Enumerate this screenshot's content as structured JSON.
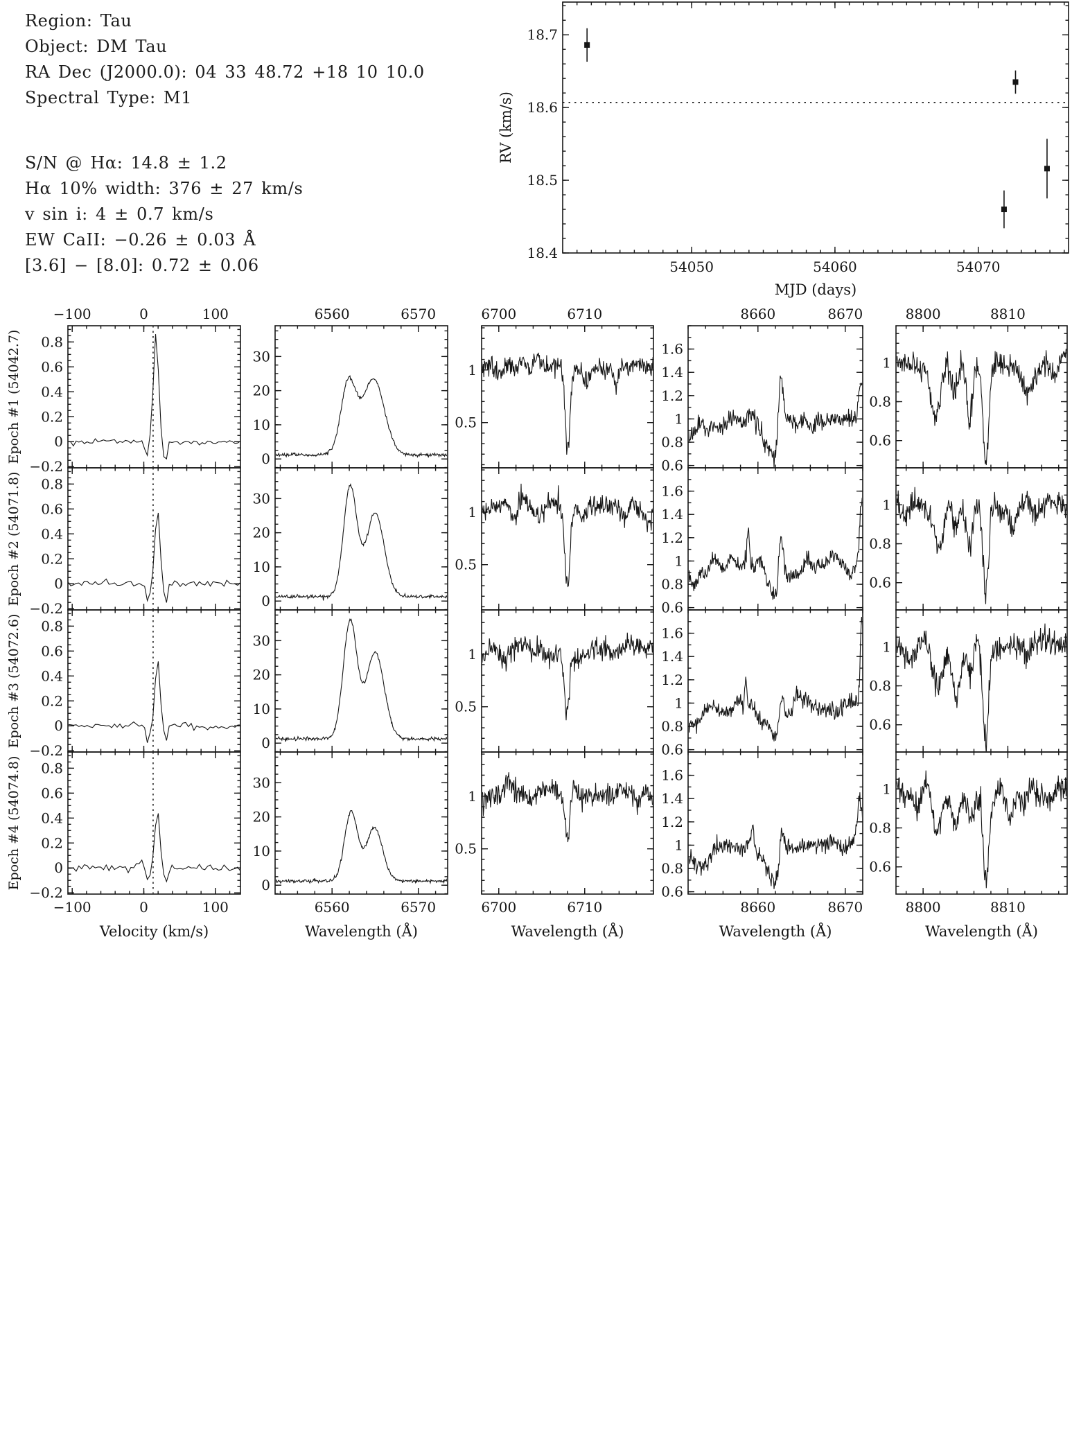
{
  "info": {
    "lines": [
      "Region: Tau",
      "Object: DM Tau",
      "RA Dec (J2000.0): 04 33 48.72 +18 10 10.0",
      "Spectral Type: M1",
      "S/N @ Hα: 14.8 ± 1.2",
      "Hα 10% width: 376 ± 27 km/s",
      "v sin i: 4 ± 0.7 km/s",
      "EW CaII: −0.26 ± 0.03 Å",
      "[3.6] − [8.0]: 0.72 ± 0.06"
    ]
  },
  "colors": {
    "ink": "#161616",
    "line": "#1a1a1a"
  },
  "chart_data": [
    {
      "id": "rv_plot",
      "type": "scatter",
      "title": "",
      "xlabel": "MJD (days)",
      "ylabel": "RV (km/s)",
      "xlim": [
        54041.0,
        54076.3
      ],
      "ylim": [
        18.4,
        18.745
      ],
      "xticks": [
        54050,
        54060,
        54070
      ],
      "yticks": [
        18.4,
        18.5,
        18.6,
        18.7
      ],
      "x_minor_step": 1,
      "y_minor_step": 0.02,
      "grid": false,
      "mean_line": 18.607,
      "points": [
        {
          "mjd": 54042.7,
          "rv": 18.686,
          "err": 0.023
        },
        {
          "mjd": 54071.8,
          "rv": 18.46,
          "err": 0.026
        },
        {
          "mjd": 54072.6,
          "rv": 18.635,
          "err": 0.016
        },
        {
          "mjd": 54074.8,
          "rv": 18.516,
          "err": 0.041
        }
      ]
    },
    {
      "id": "epoch_grid",
      "type": "line",
      "rows": [
        {
          "label": "Epoch #1 (54042.7)"
        },
        {
          "label": "Epoch #2 (54071.8)"
        },
        {
          "label": "Epoch #3 (54072.6)"
        },
        {
          "label": "Epoch #4 (54074.8)"
        }
      ],
      "columns": [
        {
          "xlabel": "Velocity (km/s)",
          "xlim": [
            -106,
            135
          ],
          "xticks": [
            -100,
            0,
            100
          ],
          "x_minor_step": 20,
          "ylim": [
            -0.21,
            0.93
          ],
          "yticks": [
            -0.2,
            0,
            0.2,
            0.4,
            0.6,
            0.8
          ],
          "y_minor_step": 0.05,
          "vline": 13
        },
        {
          "xlabel": "Wavelength (Å)",
          "xlim": [
            6553.4,
            6573.4
          ],
          "xticks": [
            6560,
            6570
          ],
          "x_minor_step": 2,
          "ylim": [
            -2.6,
            39
          ],
          "yticks": [
            0,
            10,
            20,
            30
          ],
          "y_minor_step": 2.5
        },
        {
          "xlabel": "Wavelength (Å)",
          "xlim": [
            6698,
            6718
          ],
          "xticks": [
            6700,
            6710
          ],
          "x_minor_step": 2,
          "ylim": [
            0.07,
            1.42
          ],
          "yticks": [
            0.5,
            1
          ],
          "y_minor_step": 0.1
        },
        {
          "xlabel": "Wavelength (Å)",
          "xlim": [
            8652,
            8672
          ],
          "xticks": [
            8660,
            8670
          ],
          "x_minor_step": 2,
          "ylim": [
            0.58,
            1.8
          ],
          "yticks": [
            0.6,
            0.8,
            1,
            1.2,
            1.4,
            1.6
          ],
          "y_minor_step": 0.1
        },
        {
          "xlabel": "Wavelength (Å)",
          "xlim": [
            8796.8,
            8817
          ],
          "xticks": [
            8800,
            8810
          ],
          "x_minor_step": 2,
          "ylim": [
            0.46,
            1.19
          ],
          "yticks": [
            0.6,
            0.8,
            1
          ],
          "y_minor_step": 0.05
        }
      ],
      "panels": [
        {
          "row": 0,
          "col": 0,
          "kind": "ccf",
          "seed": 11,
          "noise": 0.012,
          "features": [
            {
              "c": 17,
              "h": 0.9,
              "w": 3.4
            },
            {
              "c": 4,
              "h": -0.13,
              "w": 2.4
            },
            {
              "c": 30,
              "h": -0.16,
              "w": 2.4
            }
          ]
        },
        {
          "row": 0,
          "col": 1,
          "kind": "halpha",
          "seed": 12,
          "base": 1.2,
          "noise": 0.25,
          "features": [
            {
              "c": 6561.9,
              "h": 21.0,
              "w": 0.88
            },
            {
              "c": 6564.8,
              "h": 22.3,
              "w": 1.25
            }
          ]
        },
        {
          "row": 0,
          "col": 2,
          "kind": "spectrum",
          "seed": 13,
          "cont": 1.03,
          "noise": 0.062,
          "features": [
            {
              "c": 6708.0,
              "h": -0.78,
              "w": 0.3
            },
            {
              "c": 6713.6,
              "h": -0.2,
              "w": 0.25
            }
          ]
        },
        {
          "row": 0,
          "col": 3,
          "kind": "spectrum",
          "seed": 14,
          "cont": 0.98,
          "noise": 0.048,
          "features": [
            {
              "c": 8652.6,
              "h": -0.12,
              "w": 1.0
            },
            {
              "c": 8661.7,
              "h": -0.27,
              "w": 0.9
            },
            {
              "c": 8662.6,
              "h": 0.52,
              "w": 0.27
            },
            {
              "c": 8671.8,
              "h": 0.36,
              "w": 0.28
            }
          ]
        },
        {
          "row": 0,
          "col": 4,
          "kind": "spectrum",
          "seed": 15,
          "cont": 0.99,
          "noise": 0.042,
          "features": [
            {
              "c": 8801.5,
              "h": -0.22,
              "w": 0.55
            },
            {
              "c": 8803.8,
              "h": -0.13,
              "w": 0.4
            },
            {
              "c": 8805.5,
              "h": -0.3,
              "w": 0.33
            },
            {
              "c": 8807.4,
              "h": -0.52,
              "w": 0.32
            },
            {
              "c": 8812.3,
              "h": -0.1,
              "w": 0.5
            }
          ]
        },
        {
          "row": 1,
          "col": 0,
          "kind": "ccf",
          "seed": 21,
          "noise": 0.013,
          "features": [
            {
              "c": 19,
              "h": 0.61,
              "w": 3.2
            },
            {
              "c": 6,
              "h": -0.15,
              "w": 2.4
            },
            {
              "c": 31,
              "h": -0.16,
              "w": 2.4
            },
            {
              "c": -55,
              "h": 0.05,
              "w": 2.5
            }
          ]
        },
        {
          "row": 1,
          "col": 1,
          "kind": "halpha",
          "seed": 22,
          "base": 1.3,
          "noise": 0.25,
          "features": [
            {
              "c": 6562.1,
              "h": 32.2,
              "w": 0.78
            },
            {
              "c": 6565.0,
              "h": 24.4,
              "w": 1.05
            }
          ]
        },
        {
          "row": 1,
          "col": 2,
          "kind": "spectrum",
          "seed": 23,
          "cont": 1.03,
          "noise": 0.062,
          "features": [
            {
              "c": 6708.0,
              "h": -0.75,
              "w": 0.3
            }
          ]
        },
        {
          "row": 1,
          "col": 3,
          "kind": "spectrum",
          "seed": 24,
          "cont": 0.98,
          "noise": 0.048,
          "features": [
            {
              "c": 8652.8,
              "h": -0.14,
              "w": 1.0
            },
            {
              "c": 8661.9,
              "h": -0.3,
              "w": 0.9
            },
            {
              "c": 8662.6,
              "h": 0.44,
              "w": 0.27
            },
            {
              "c": 8658.9,
              "h": 0.26,
              "w": 0.13
            },
            {
              "c": 8671.9,
              "h": 0.55,
              "w": 0.22
            }
          ]
        },
        {
          "row": 1,
          "col": 4,
          "kind": "spectrum",
          "seed": 25,
          "cont": 0.99,
          "noise": 0.042,
          "features": [
            {
              "c": 8801.6,
              "h": -0.2,
              "w": 0.55
            },
            {
              "c": 8803.8,
              "h": -0.16,
              "w": 0.4
            },
            {
              "c": 8805.6,
              "h": -0.18,
              "w": 0.33
            },
            {
              "c": 8807.4,
              "h": -0.46,
              "w": 0.32
            },
            {
              "c": 8810.6,
              "h": -0.12,
              "w": 0.4
            }
          ]
        },
        {
          "row": 2,
          "col": 0,
          "kind": "ccf",
          "seed": 31,
          "noise": 0.013,
          "features": [
            {
              "c": 19,
              "h": 0.54,
              "w": 3.2
            },
            {
              "c": 6,
              "h": -0.14,
              "w": 2.4
            },
            {
              "c": 31,
              "h": -0.14,
              "w": 2.4
            }
          ]
        },
        {
          "row": 2,
          "col": 1,
          "kind": "halpha",
          "seed": 32,
          "base": 1.3,
          "noise": 0.25,
          "features": [
            {
              "c": 6562.1,
              "h": 34.3,
              "w": 0.8
            },
            {
              "c": 6565.0,
              "h": 25.2,
              "w": 1.05
            }
          ]
        },
        {
          "row": 2,
          "col": 2,
          "kind": "spectrum",
          "seed": 33,
          "cont": 1.03,
          "noise": 0.062,
          "features": [
            {
              "c": 6707.9,
              "h": -0.62,
              "w": 0.3
            }
          ]
        },
        {
          "row": 2,
          "col": 3,
          "kind": "spectrum",
          "seed": 34,
          "cont": 0.98,
          "noise": 0.048,
          "features": [
            {
              "c": 8652.9,
              "h": -0.12,
              "w": 1.0
            },
            {
              "c": 8661.9,
              "h": -0.28,
              "w": 0.9
            },
            {
              "c": 8662.7,
              "h": 0.3,
              "w": 0.27
            },
            {
              "c": 8658.6,
              "h": 0.24,
              "w": 0.13
            },
            {
              "c": 8671.9,
              "h": 0.78,
              "w": 0.18
            }
          ]
        },
        {
          "row": 2,
          "col": 4,
          "kind": "spectrum",
          "seed": 35,
          "cont": 0.99,
          "noise": 0.042,
          "features": [
            {
              "c": 8801.6,
              "h": -0.2,
              "w": 0.55
            },
            {
              "c": 8803.9,
              "h": -0.18,
              "w": 0.4
            },
            {
              "c": 8805.6,
              "h": -0.16,
              "w": 0.33
            },
            {
              "c": 8807.4,
              "h": -0.47,
              "w": 0.32
            }
          ]
        },
        {
          "row": 3,
          "col": 0,
          "kind": "ccf",
          "seed": 41,
          "noise": 0.014,
          "features": [
            {
              "c": 19,
              "h": 0.47,
              "w": 3.2
            },
            {
              "c": 6,
              "h": -0.15,
              "w": 2.4
            },
            {
              "c": 31,
              "h": -0.12,
              "w": 2.4
            },
            {
              "c": -4,
              "h": 0.06,
              "w": 2.0
            }
          ]
        },
        {
          "row": 3,
          "col": 1,
          "kind": "halpha",
          "seed": 42,
          "base": 1.2,
          "noise": 0.25,
          "features": [
            {
              "c": 6562.2,
              "h": 20.4,
              "w": 0.75
            },
            {
              "c": 6564.9,
              "h": 15.6,
              "w": 0.95
            }
          ]
        },
        {
          "row": 3,
          "col": 2,
          "kind": "spectrum",
          "seed": 43,
          "cont": 1.03,
          "noise": 0.062,
          "features": [
            {
              "c": 6708.0,
              "h": -0.5,
              "w": 0.3
            }
          ]
        },
        {
          "row": 3,
          "col": 3,
          "kind": "spectrum",
          "seed": 44,
          "cont": 0.98,
          "noise": 0.048,
          "features": [
            {
              "c": 8652.9,
              "h": -0.16,
              "w": 1.1
            },
            {
              "c": 8661.9,
              "h": -0.3,
              "w": 0.95
            },
            {
              "c": 8662.7,
              "h": 0.28,
              "w": 0.27
            },
            {
              "c": 8659.4,
              "h": 0.2,
              "w": 0.13
            },
            {
              "c": 8671.7,
              "h": 0.4,
              "w": 0.28
            }
          ]
        },
        {
          "row": 3,
          "col": 4,
          "kind": "spectrum",
          "seed": 45,
          "cont": 0.99,
          "noise": 0.042,
          "features": [
            {
              "c": 8799.3,
              "h": -0.1,
              "w": 0.4
            },
            {
              "c": 8801.6,
              "h": -0.18,
              "w": 0.55
            },
            {
              "c": 8803.9,
              "h": -0.16,
              "w": 0.4
            },
            {
              "c": 8805.7,
              "h": -0.15,
              "w": 0.33
            },
            {
              "c": 8807.4,
              "h": -0.46,
              "w": 0.32
            },
            {
              "c": 8810.4,
              "h": -0.1,
              "w": 0.4
            }
          ]
        }
      ]
    }
  ]
}
